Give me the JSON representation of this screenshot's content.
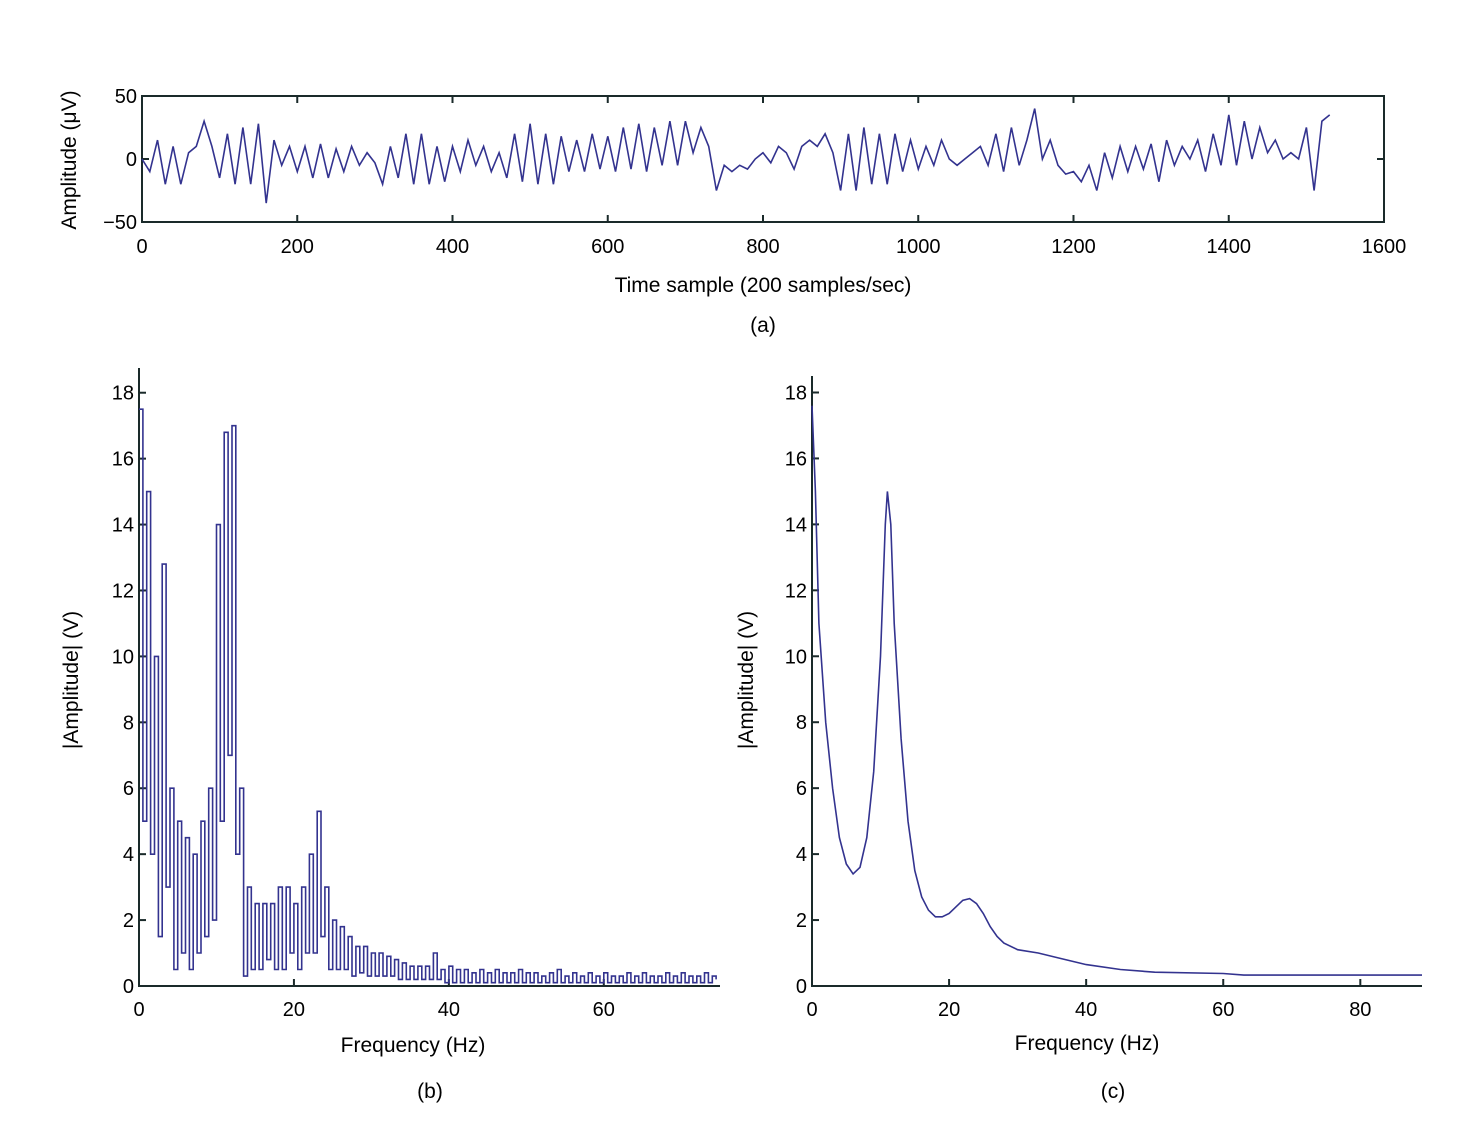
{
  "line_color": "#33338f",
  "chart_data": [
    {
      "type": "line",
      "panel_label": "(a)",
      "xlabel": "Time sample (200 samples/sec)",
      "ylabel": "Amplitude (μV)",
      "xlim": [
        0,
        1600
      ],
      "ylim": [
        -50,
        50
      ],
      "xticks": [
        "0",
        "200",
        "400",
        "600",
        "800",
        "1000",
        "1200",
        "1400",
        "1600"
      ],
      "yticks": [
        "−50",
        "0",
        "50"
      ],
      "x_step": 10,
      "y": [
        0,
        -10,
        15,
        -20,
        10,
        -20,
        5,
        10,
        30,
        10,
        -15,
        20,
        -20,
        25,
        -20,
        28,
        -35,
        15,
        -5,
        10,
        -10,
        10,
        -15,
        12,
        -15,
        8,
        -10,
        10,
        -5,
        5,
        -3,
        -20,
        10,
        -15,
        20,
        -20,
        20,
        -20,
        10,
        -18,
        10,
        -10,
        15,
        -5,
        10,
        -10,
        5,
        -15,
        20,
        -18,
        28,
        -20,
        20,
        -20,
        18,
        -10,
        15,
        -10,
        20,
        -8,
        18,
        -10,
        25,
        -8,
        28,
        -10,
        25,
        -5,
        30,
        -5,
        30,
        5,
        25,
        10,
        -25,
        -5,
        -10,
        -5,
        -8,
        0,
        5,
        -3,
        10,
        5,
        -8,
        10,
        15,
        10,
        20,
        5,
        -25,
        20,
        -25,
        25,
        -20,
        20,
        -20,
        20,
        -10,
        15,
        -8,
        10,
        -5,
        15,
        0,
        -5,
        0,
        5,
        10,
        -5,
        20,
        -10,
        25,
        -5,
        15,
        40,
        0,
        15,
        -5,
        -12,
        -10,
        -18,
        -5,
        -25,
        5,
        -15,
        10,
        -10,
        10,
        -8,
        12,
        -18,
        15,
        -5,
        10,
        0,
        15,
        -10,
        20,
        -5,
        35,
        -5,
        30,
        0,
        25,
        5,
        15,
        0,
        5,
        0,
        25,
        -25,
        30,
        35
      ]
    },
    {
      "type": "line",
      "panel_label": "(b)",
      "xlabel": "Frequency (Hz)",
      "ylabel": "|Amplitude| (V)",
      "xlim": [
        0,
        75
      ],
      "ylim": [
        0,
        18.75
      ],
      "xticks": [
        "0",
        "20",
        "40",
        "60"
      ],
      "yticks": [
        "0",
        "2",
        "4",
        "6",
        "8",
        "10",
        "12",
        "14",
        "16",
        "18"
      ],
      "x_step": 0.5,
      "y": [
        17.5,
        5,
        15,
        4,
        10,
        1.5,
        12.8,
        3,
        6,
        0.5,
        5,
        1,
        4.5,
        0.5,
        4,
        1,
        5,
        1.5,
        6,
        2,
        14,
        5,
        16.8,
        7,
        17,
        4,
        6,
        0.3,
        3,
        0.5,
        2.5,
        0.5,
        2.5,
        0.8,
        2.5,
        0.5,
        3,
        0.5,
        3,
        1,
        2.5,
        0.5,
        3,
        1,
        4,
        1,
        5.3,
        1.5,
        3,
        0.5,
        2,
        0.5,
        1.8,
        0.5,
        1.5,
        0.3,
        1.2,
        0.4,
        1.2,
        0.3,
        1,
        0.3,
        1,
        0.3,
        0.9,
        0.3,
        0.8,
        0.2,
        0.7,
        0.2,
        0.6,
        0.2,
        0.6,
        0.2,
        0.6,
        0.2,
        1,
        0.2,
        0.5,
        0.1,
        0.6,
        0.1,
        0.5,
        0.1,
        0.5,
        0.1,
        0.4,
        0.1,
        0.5,
        0.1,
        0.4,
        0.1,
        0.5,
        0.1,
        0.4,
        0.1,
        0.4,
        0.1,
        0.5,
        0.1,
        0.4,
        0.1,
        0.4,
        0.1,
        0.3,
        0.1,
        0.4,
        0.1,
        0.5,
        0.1,
        0.3,
        0.1,
        0.4,
        0.1,
        0.3,
        0.1,
        0.4,
        0.1,
        0.3,
        0.1,
        0.4,
        0.1,
        0.3,
        0.1,
        0.3,
        0.1,
        0.4,
        0.1,
        0.3,
        0.1,
        0.4,
        0.1,
        0.3,
        0.1,
        0.3,
        0.1,
        0.4,
        0.1,
        0.3,
        0.1,
        0.4,
        0.1,
        0.3,
        0.1,
        0.3,
        0.1,
        0.4,
        0.1,
        0.3,
        0.2
      ]
    },
    {
      "type": "line",
      "panel_label": "(c)",
      "xlabel": "Frequency (Hz)",
      "ylabel": "|Amplitude| (V)",
      "xlim": [
        0,
        89
      ],
      "ylim": [
        0,
        18.5
      ],
      "xticks": [
        "0",
        "20",
        "40",
        "60",
        "80"
      ],
      "yticks": [
        "0",
        "2",
        "4",
        "6",
        "8",
        "10",
        "12",
        "14",
        "16",
        "18"
      ],
      "points": [
        [
          0,
          17.6
        ],
        [
          0.5,
          15
        ],
        [
          1,
          11
        ],
        [
          2,
          8
        ],
        [
          3,
          6
        ],
        [
          4,
          4.5
        ],
        [
          5,
          3.7
        ],
        [
          6,
          3.4
        ],
        [
          7,
          3.6
        ],
        [
          8,
          4.5
        ],
        [
          9,
          6.5
        ],
        [
          10,
          10
        ],
        [
          10.7,
          14
        ],
        [
          11,
          15
        ],
        [
          11.5,
          14
        ],
        [
          12,
          11
        ],
        [
          13,
          7.5
        ],
        [
          14,
          5
        ],
        [
          15,
          3.5
        ],
        [
          16,
          2.7
        ],
        [
          17,
          2.3
        ],
        [
          18,
          2.1
        ],
        [
          19,
          2.1
        ],
        [
          20,
          2.2
        ],
        [
          21,
          2.4
        ],
        [
          22,
          2.6
        ],
        [
          23,
          2.65
        ],
        [
          24,
          2.5
        ],
        [
          25,
          2.2
        ],
        [
          26,
          1.8
        ],
        [
          27,
          1.5
        ],
        [
          28,
          1.3
        ],
        [
          30,
          1.1
        ],
        [
          33,
          1
        ],
        [
          36,
          0.85
        ],
        [
          40,
          0.65
        ],
        [
          45,
          0.5
        ],
        [
          50,
          0.42
        ],
        [
          60,
          0.38
        ],
        [
          63,
          0.33
        ],
        [
          89,
          0.33
        ]
      ]
    }
  ]
}
